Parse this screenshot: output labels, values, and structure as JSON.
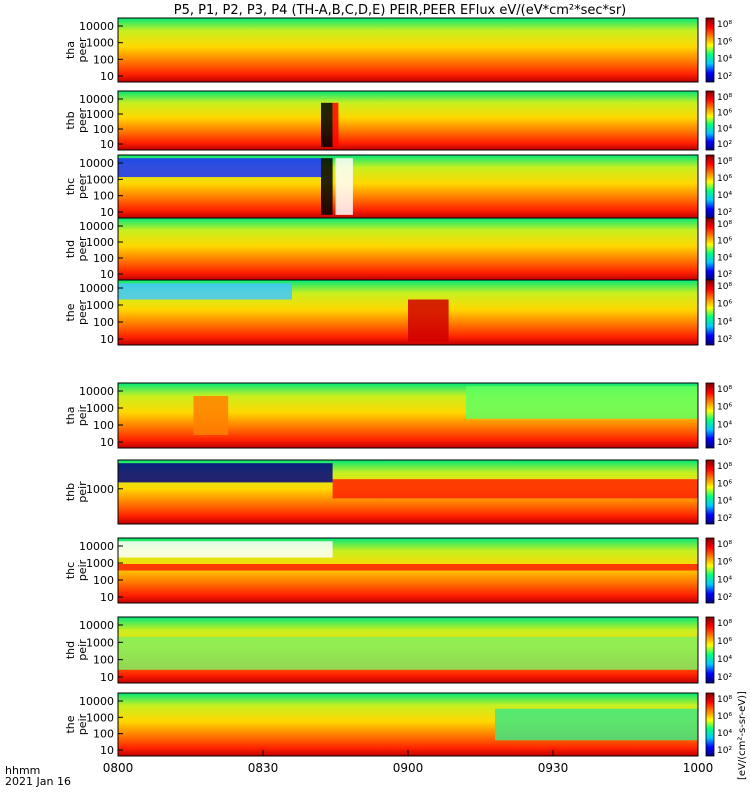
{
  "chart_data": {
    "type": "heatmap",
    "title": "P5, P1, P2, P3, P4 (TH-A,B,C,D,E) PEIR,PEER EFlux eV/(eV*cm²*sec*sr)",
    "x_axis": {
      "ticks": [
        "0800",
        "0830",
        "0900",
        "0930",
        "1000"
      ],
      "range": [
        "08:00",
        "10:00"
      ],
      "label_line1": "hhmm",
      "label_line2": "2021 Jan 16"
    },
    "colorbar": {
      "label": "[eV/(cm²-s-sr-eV)]",
      "ticks": [
        "10²",
        "10⁴",
        "10⁶",
        "10⁸"
      ],
      "colormap": [
        "#000080",
        "#0000ff",
        "#00c8ff",
        "#00ff80",
        "#ffff00",
        "#ff8000",
        "#ff0000",
        "#800000"
      ]
    },
    "panels": [
      {
        "label_top": "tha",
        "label_bottom": "peer",
        "ylabels": [
          "10000",
          "1000",
          "100",
          "10"
        ]
      },
      {
        "label_top": "thb",
        "label_bottom": "peer",
        "ylabels": [
          "10000",
          "1000",
          "100",
          "10"
        ]
      },
      {
        "label_top": "thc",
        "label_bottom": "peer",
        "ylabels": [
          "10000",
          "1000",
          "100",
          "10"
        ]
      },
      {
        "label_top": "thd",
        "label_bottom": "peer",
        "ylabels": [
          "10000",
          "1000",
          "100",
          "10"
        ]
      },
      {
        "label_top": "the",
        "label_bottom": "peer",
        "ylabels": [
          "10000",
          "1000",
          "100",
          "10"
        ]
      },
      {
        "label_top": "tha",
        "label_bottom": "peir",
        "ylabels": [
          "10000",
          "1000",
          "100",
          "10"
        ]
      },
      {
        "label_top": "thb",
        "label_bottom": "peir",
        "ylabels": [
          "1000"
        ]
      },
      {
        "label_top": "thc",
        "label_bottom": "peir",
        "ylabels": [
          "10000",
          "1000",
          "100",
          "10"
        ]
      },
      {
        "label_top": "thd",
        "label_bottom": "peir",
        "ylabels": [
          "10000",
          "1000",
          "100",
          "10"
        ]
      },
      {
        "label_top": "the",
        "label_bottom": "peir",
        "ylabels": [
          "10000",
          "1000",
          "100",
          "10"
        ]
      }
    ]
  }
}
